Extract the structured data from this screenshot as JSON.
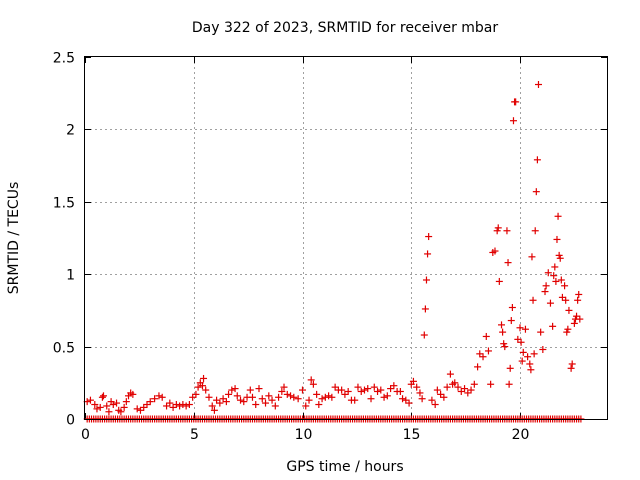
{
  "chart_data": {
    "type": "scatter",
    "title": "Day 322 of 2023, SRMTID for receiver mbar",
    "xlabel": "GPS time / hours",
    "ylabel": "SRMTID / TECUs",
    "xlim": [
      0,
      24
    ],
    "ylim": [
      0,
      2.5
    ],
    "xticks": [
      0,
      5,
      10,
      15,
      20
    ],
    "xtick_labels": [
      "0",
      "5",
      "10",
      "15",
      "20"
    ],
    "yticks": [
      0,
      0.5,
      1,
      1.5,
      2,
      2.5
    ],
    "ytick_labels": [
      "0",
      "0.5",
      "1",
      "1.5",
      "2",
      "2.5"
    ],
    "grid": true,
    "marker": "+",
    "series_color": "#e00000",
    "series": [
      {
        "name": "SRMTID",
        "points": [
          [
            0.1,
            0.12
          ],
          [
            0.25,
            0.13
          ],
          [
            0.45,
            0.1
          ],
          [
            0.55,
            0.07
          ],
          [
            0.7,
            0.08
          ],
          [
            0.8,
            0.15
          ],
          [
            0.85,
            0.16
          ],
          [
            1.0,
            0.09
          ],
          [
            1.1,
            0.05
          ],
          [
            1.2,
            0.12
          ],
          [
            1.3,
            0.1
          ],
          [
            1.45,
            0.11
          ],
          [
            1.55,
            0.06
          ],
          [
            1.65,
            0.05
          ],
          [
            1.8,
            0.08
          ],
          [
            1.9,
            0.12
          ],
          [
            2.0,
            0.16
          ],
          [
            2.1,
            0.18
          ],
          [
            2.2,
            0.17
          ],
          [
            2.4,
            0.07
          ],
          [
            2.55,
            0.06
          ],
          [
            2.7,
            0.08
          ],
          [
            2.85,
            0.1
          ],
          [
            3.0,
            0.12
          ],
          [
            3.2,
            0.14
          ],
          [
            3.4,
            0.16
          ],
          [
            3.55,
            0.15
          ],
          [
            3.75,
            0.09
          ],
          [
            3.9,
            0.11
          ],
          [
            4.05,
            0.08
          ],
          [
            4.2,
            0.1
          ],
          [
            4.35,
            0.09
          ],
          [
            4.5,
            0.1
          ],
          [
            4.65,
            0.09
          ],
          [
            4.8,
            0.1
          ],
          [
            4.95,
            0.15
          ],
          [
            5.1,
            0.17
          ],
          [
            5.2,
            0.22
          ],
          [
            5.3,
            0.25
          ],
          [
            5.4,
            0.23
          ],
          [
            5.45,
            0.28
          ],
          [
            5.55,
            0.2
          ],
          [
            5.7,
            0.15
          ],
          [
            5.85,
            0.09
          ],
          [
            5.95,
            0.06
          ],
          [
            6.05,
            0.13
          ],
          [
            6.2,
            0.11
          ],
          [
            6.35,
            0.14
          ],
          [
            6.5,
            0.12
          ],
          [
            6.6,
            0.17
          ],
          [
            6.75,
            0.2
          ],
          [
            6.9,
            0.21
          ],
          [
            7.0,
            0.16
          ],
          [
            7.15,
            0.13
          ],
          [
            7.3,
            0.12
          ],
          [
            7.45,
            0.15
          ],
          [
            7.6,
            0.2
          ],
          [
            7.7,
            0.15
          ],
          [
            7.85,
            0.1
          ],
          [
            8.0,
            0.21
          ],
          [
            8.15,
            0.14
          ],
          [
            8.3,
            0.11
          ],
          [
            8.45,
            0.16
          ],
          [
            8.6,
            0.13
          ],
          [
            8.75,
            0.09
          ],
          [
            8.9,
            0.15
          ],
          [
            9.05,
            0.19
          ],
          [
            9.15,
            0.22
          ],
          [
            9.3,
            0.17
          ],
          [
            9.45,
            0.16
          ],
          [
            9.6,
            0.15
          ],
          [
            9.8,
            0.14
          ],
          [
            10.0,
            0.2
          ],
          [
            10.15,
            0.09
          ],
          [
            10.3,
            0.13
          ],
          [
            10.4,
            0.27
          ],
          [
            10.5,
            0.24
          ],
          [
            10.65,
            0.17
          ],
          [
            10.75,
            0.1
          ],
          [
            10.9,
            0.14
          ],
          [
            11.05,
            0.15
          ],
          [
            11.2,
            0.16
          ],
          [
            11.35,
            0.15
          ],
          [
            11.5,
            0.22
          ],
          [
            11.65,
            0.2
          ],
          [
            11.8,
            0.2
          ],
          [
            11.95,
            0.17
          ],
          [
            12.1,
            0.19
          ],
          [
            12.25,
            0.13
          ],
          [
            12.4,
            0.13
          ],
          [
            12.55,
            0.22
          ],
          [
            12.7,
            0.19
          ],
          [
            12.85,
            0.2
          ],
          [
            13.0,
            0.21
          ],
          [
            13.15,
            0.14
          ],
          [
            13.3,
            0.22
          ],
          [
            13.45,
            0.19
          ],
          [
            13.6,
            0.2
          ],
          [
            13.75,
            0.15
          ],
          [
            13.9,
            0.16
          ],
          [
            14.05,
            0.21
          ],
          [
            14.2,
            0.23
          ],
          [
            14.35,
            0.19
          ],
          [
            14.5,
            0.19
          ],
          [
            14.6,
            0.14
          ],
          [
            14.75,
            0.13
          ],
          [
            14.9,
            0.11
          ],
          [
            15.0,
            0.24
          ],
          [
            15.1,
            0.26
          ],
          [
            15.25,
            0.22
          ],
          [
            15.4,
            0.18
          ],
          [
            15.5,
            0.14
          ],
          [
            15.6,
            0.58
          ],
          [
            15.65,
            0.76
          ],
          [
            15.7,
            0.96
          ],
          [
            15.75,
            1.14
          ],
          [
            15.8,
            1.26
          ],
          [
            15.95,
            0.13
          ],
          [
            16.1,
            0.1
          ],
          [
            16.2,
            0.2
          ],
          [
            16.35,
            0.17
          ],
          [
            16.5,
            0.15
          ],
          [
            16.65,
            0.22
          ],
          [
            16.8,
            0.31
          ],
          [
            16.9,
            0.24
          ],
          [
            17.0,
            0.25
          ],
          [
            17.15,
            0.22
          ],
          [
            17.3,
            0.19
          ],
          [
            17.45,
            0.21
          ],
          [
            17.6,
            0.18
          ],
          [
            17.75,
            0.2
          ],
          [
            17.9,
            0.24
          ],
          [
            18.05,
            0.36
          ],
          [
            18.15,
            0.45
          ],
          [
            18.3,
            0.43
          ],
          [
            18.45,
            0.57
          ],
          [
            18.55,
            0.47
          ],
          [
            18.65,
            0.24
          ],
          [
            18.75,
            1.15
          ],
          [
            18.85,
            1.16
          ],
          [
            18.95,
            1.3
          ],
          [
            19.0,
            1.32
          ],
          [
            19.05,
            0.95
          ],
          [
            19.15,
            0.65
          ],
          [
            19.2,
            0.6
          ],
          [
            19.25,
            0.52
          ],
          [
            19.3,
            0.5
          ],
          [
            19.4,
            1.3
          ],
          [
            19.45,
            1.08
          ],
          [
            19.5,
            0.24
          ],
          [
            19.55,
            0.35
          ],
          [
            19.6,
            0.68
          ],
          [
            19.65,
            0.77
          ],
          [
            19.7,
            2.06
          ],
          [
            19.75,
            2.19
          ],
          [
            19.8,
            2.19
          ],
          [
            19.9,
            0.55
          ],
          [
            20.0,
            0.63
          ],
          [
            20.05,
            0.53
          ],
          [
            20.1,
            0.4
          ],
          [
            20.15,
            0.46
          ],
          [
            20.25,
            0.62
          ],
          [
            20.35,
            0.43
          ],
          [
            20.45,
            0.38
          ],
          [
            20.5,
            0.34
          ],
          [
            20.55,
            1.12
          ],
          [
            20.6,
            0.82
          ],
          [
            20.65,
            0.45
          ],
          [
            20.7,
            1.3
          ],
          [
            20.75,
            1.57
          ],
          [
            20.8,
            1.79
          ],
          [
            20.85,
            2.31
          ],
          [
            20.95,
            0.6
          ],
          [
            21.05,
            0.48
          ],
          [
            21.15,
            0.88
          ],
          [
            21.2,
            0.92
          ],
          [
            21.3,
            1.01
          ],
          [
            21.4,
            0.8
          ],
          [
            21.5,
            0.64
          ],
          [
            21.55,
            0.99
          ],
          [
            21.6,
            1.05
          ],
          [
            21.65,
            0.95
          ],
          [
            21.7,
            1.24
          ],
          [
            21.75,
            1.4
          ],
          [
            21.8,
            1.13
          ],
          [
            21.85,
            1.11
          ],
          [
            21.9,
            0.96
          ],
          [
            21.95,
            0.84
          ],
          [
            22.05,
            0.92
          ],
          [
            22.1,
            0.82
          ],
          [
            22.15,
            0.6
          ],
          [
            22.2,
            0.62
          ],
          [
            22.25,
            0.75
          ],
          [
            22.35,
            0.35
          ],
          [
            22.4,
            0.38
          ],
          [
            22.5,
            0.66
          ],
          [
            22.55,
            0.69
          ],
          [
            22.6,
            0.71
          ],
          [
            22.65,
            0.82
          ],
          [
            22.7,
            0.86
          ],
          [
            22.75,
            0.69
          ]
        ],
        "zero_baseline": {
          "x_start": 0.1,
          "x_end": 22.8,
          "y": 0
        }
      }
    ]
  }
}
